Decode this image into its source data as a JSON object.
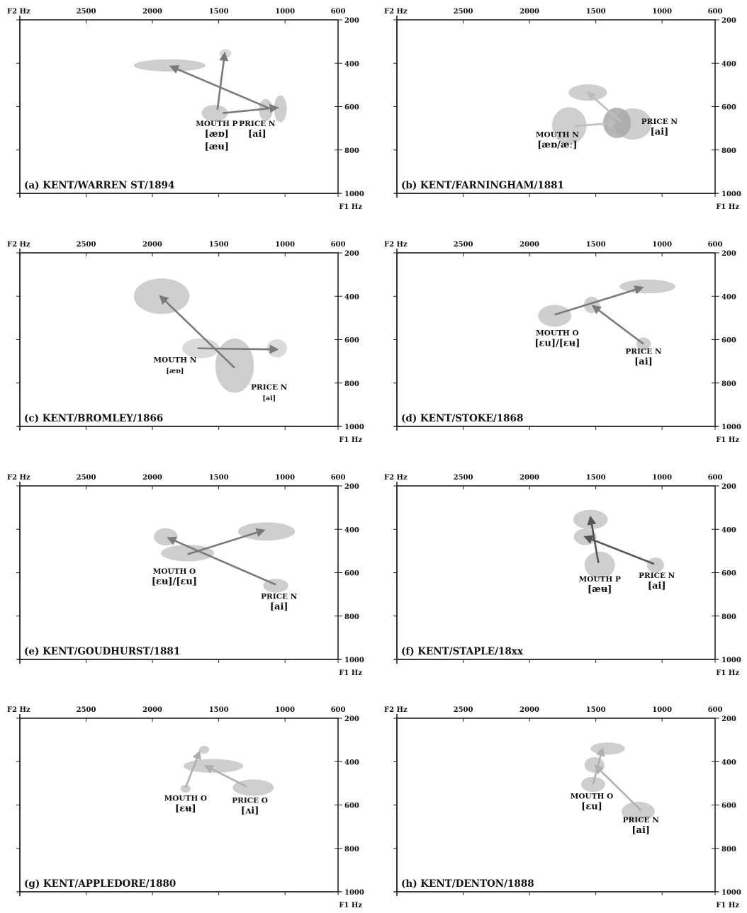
{
  "chart_data": [
    {
      "type": "scatter",
      "title": "(a) KENT/WARREN ST/1894",
      "xlabel": "F2 Hz",
      "ylabel": "F1 Hz",
      "xticks": [
        "2500",
        "2000",
        "1500",
        "1000",
        "600"
      ],
      "yticks": [
        "200",
        "400",
        "600",
        "800",
        "1000"
      ],
      "xlim": [
        3000,
        600
      ],
      "ylim": [
        200,
        1000
      ],
      "x_reversed": true,
      "y_reversed": true,
      "ellipses": [
        {
          "f2": 1450,
          "f1": 355,
          "rf2": 45,
          "rf1": 20,
          "shade": "#d4d4d4"
        },
        {
          "f2": 1870,
          "f1": 410,
          "rf2": 270,
          "rf1": 28,
          "shade": "#c6c6c6"
        },
        {
          "f2": 1530,
          "f1": 630,
          "rf2": 100,
          "rf1": 38,
          "shade": "#c6c6c6"
        },
        {
          "f2": 1145,
          "f1": 615,
          "rf2": 52,
          "rf1": 50,
          "shade": "#c6c6c6"
        },
        {
          "f2": 1035,
          "f1": 610,
          "rf2": 48,
          "rf1": 62,
          "shade": "#c6c6c6"
        }
      ],
      "arrows": [
        {
          "from": [
            1510,
            615
          ],
          "to": [
            1455,
            355
          ],
          "color": "#7a7a7a"
        },
        {
          "from": [
            1470,
            630
          ],
          "to": [
            1060,
            605
          ],
          "color": "#7a7a7a"
        },
        {
          "from": [
            1110,
            610
          ],
          "to": [
            1860,
            415
          ],
          "color": "#7a7a7a"
        }
      ],
      "labels": [
        {
          "lines": [
            "MOUTH P",
            "[æɒ]",
            "[æʉ]"
          ],
          "f2": 1515,
          "f1": 690,
          "styles": [
            "ann-label",
            "ann-ipa",
            "ann-ipa"
          ]
        },
        {
          "lines": [
            "PRICE N",
            "[ai]"
          ],
          "f2": 1210,
          "f1": 690,
          "styles": [
            "ann-label",
            "ann-ipa"
          ]
        }
      ]
    },
    {
      "type": "scatter",
      "title": "(b) KENT/FARNINGHAM/1881",
      "xlabel": "F2 Hz",
      "ylabel": "F1 Hz",
      "xticks": [
        "2500",
        "2000",
        "1500",
        "1000",
        "600"
      ],
      "yticks": [
        "200",
        "400",
        "600",
        "800",
        "1000"
      ],
      "xlim": [
        3000,
        600
      ],
      "ylim": [
        200,
        1000
      ],
      "x_reversed": true,
      "y_reversed": true,
      "ellipses": [
        {
          "f2": 1560,
          "f1": 535,
          "rf2": 145,
          "rf1": 38,
          "shade": "#c6c6c6"
        },
        {
          "f2": 1700,
          "f1": 688,
          "rf2": 130,
          "rf1": 85,
          "shade": "#c6c6c6"
        },
        {
          "f2": 1220,
          "f1": 680,
          "rf2": 140,
          "rf1": 72,
          "shade": "#c6c6c6"
        },
        {
          "f2": 1340,
          "f1": 675,
          "rf2": 105,
          "rf1": 70,
          "shade": "#a8a8a8"
        }
      ],
      "arrows": [
        {
          "from": [
            1660,
            690
          ],
          "to": [
            1350,
            675
          ],
          "color": "#bdbdbd"
        },
        {
          "from": [
            1310,
            670
          ],
          "to": [
            1560,
            535
          ],
          "color": "#bdbdbd"
        }
      ],
      "labels": [
        {
          "lines": [
            "MOUTH N",
            "[æɒ/æː]"
          ],
          "f2": 1790,
          "f1": 740,
          "styles": [
            "ann-label",
            "ann-ipa"
          ]
        },
        {
          "lines": [
            "PRICE N",
            "[ai]"
          ],
          "f2": 1020,
          "f1": 680,
          "styles": [
            "ann-label",
            "ann-ipa"
          ]
        }
      ]
    },
    {
      "type": "scatter",
      "title": "(c) KENT/BROMLEY/1866",
      "xlabel": "F2 Hz",
      "ylabel": "F1 Hz",
      "xticks": [
        "2500",
        "2000",
        "1500",
        "1000",
        "600"
      ],
      "yticks": [
        "200",
        "400",
        "600",
        "800",
        "1000"
      ],
      "xlim": [
        3000,
        600
      ],
      "ylim": [
        200,
        1000
      ],
      "x_reversed": true,
      "y_reversed": true,
      "ellipses": [
        {
          "f2": 1930,
          "f1": 400,
          "rf2": 210,
          "rf1": 82,
          "shade": "#c6c6c6"
        },
        {
          "f2": 1635,
          "f1": 640,
          "rf2": 140,
          "rf1": 46,
          "shade": "#d4d4d4"
        },
        {
          "f2": 1060,
          "f1": 640,
          "rf2": 75,
          "rf1": 42,
          "shade": "#d4d4d4"
        },
        {
          "f2": 1380,
          "f1": 720,
          "rf2": 145,
          "rf1": 125,
          "shade": "#c6c6c6"
        }
      ],
      "arrows": [
        {
          "from": [
            1380,
            730
          ],
          "to": [
            1940,
            400
          ],
          "color": "#7a7a7a"
        },
        {
          "from": [
            1660,
            640
          ],
          "to": [
            1060,
            645
          ],
          "color": "#7a7a7a"
        }
      ],
      "labels": [
        {
          "lines": [
            "MOUTH N",
            "[æɒ]"
          ],
          "f2": 1830,
          "f1": 705,
          "styles": [
            "ann-label",
            "ann-ipa-small"
          ]
        },
        {
          "lines": [
            "PRICE N",
            "[ai]"
          ],
          "f2": 1120,
          "f1": 830,
          "styles": [
            "ann-label",
            "ann-ipa-small"
          ]
        }
      ]
    },
    {
      "type": "scatter",
      "title": "(d) KENT/STOKE/1868",
      "xlabel": "F2 Hz",
      "ylabel": "F1 Hz",
      "xticks": [
        "2500",
        "2000",
        "1500",
        "1000",
        "600"
      ],
      "yticks": [
        "200",
        "400",
        "600",
        "800",
        "1000"
      ],
      "xlim": [
        3000,
        600
      ],
      "ylim": [
        200,
        1000
      ],
      "x_reversed": true,
      "y_reversed": true,
      "ellipses": [
        {
          "f2": 1110,
          "f1": 355,
          "rf2": 210,
          "rf1": 32,
          "shade": "#c6c6c6"
        },
        {
          "f2": 1530,
          "f1": 440,
          "rf2": 60,
          "rf1": 38,
          "shade": "#c6c6c6"
        },
        {
          "f2": 1810,
          "f1": 490,
          "rf2": 125,
          "rf1": 50,
          "shade": "#c6c6c6"
        },
        {
          "f2": 1140,
          "f1": 620,
          "rf2": 55,
          "rf1": 30,
          "shade": "#c6c6c6"
        }
      ],
      "arrows": [
        {
          "from": [
            1810,
            485
          ],
          "to": [
            1150,
            360
          ],
          "color": "#7a7a7a"
        },
        {
          "from": [
            1140,
            620
          ],
          "to": [
            1520,
            445
          ],
          "color": "#7a7a7a"
        }
      ],
      "labels": [
        {
          "lines": [
            "MOUTH O",
            "[ɛu]/[ɛʉ]"
          ],
          "f2": 1790,
          "f1": 580,
          "styles": [
            "ann-label",
            "ann-ipa"
          ]
        },
        {
          "lines": [
            "PRICE N",
            "[ai]"
          ],
          "f2": 1140,
          "f1": 665,
          "styles": [
            "ann-label",
            "ann-ipa"
          ]
        }
      ]
    },
    {
      "type": "scatter",
      "title": "(e) KENT/GOUDHURST/1881",
      "xlabel": "F2 Hz",
      "ylabel": "F1 Hz",
      "xticks": [
        "2500",
        "2000",
        "1500",
        "1000",
        "600"
      ],
      "yticks": [
        "200",
        "400",
        "600",
        "800",
        "1000"
      ],
      "xlim": [
        3000,
        600
      ],
      "ylim": [
        200,
        1000
      ],
      "x_reversed": true,
      "y_reversed": true,
      "ellipses": [
        {
          "f2": 1900,
          "f1": 435,
          "rf2": 90,
          "rf1": 40,
          "shade": "#c6c6c6"
        },
        {
          "f2": 1140,
          "f1": 410,
          "rf2": 215,
          "rf1": 42,
          "shade": "#c6c6c6"
        },
        {
          "f2": 1735,
          "f1": 510,
          "rf2": 200,
          "rf1": 38,
          "shade": "#c6c6c6"
        },
        {
          "f2": 1070,
          "f1": 660,
          "rf2": 95,
          "rf1": 32,
          "shade": "#c6c6c6"
        }
      ],
      "arrows": [
        {
          "from": [
            1735,
            515
          ],
          "to": [
            1160,
            405
          ],
          "color": "#7a7a7a"
        },
        {
          "from": [
            1070,
            655
          ],
          "to": [
            1880,
            440
          ],
          "color": "#7a7a7a"
        }
      ],
      "labels": [
        {
          "lines": [
            "MOUTH O",
            "[ɛʉ]/[ɛu]"
          ],
          "f2": 1835,
          "f1": 605,
          "styles": [
            "ann-label",
            "ann-ipa"
          ]
        },
        {
          "lines": [
            "PRICE N",
            "[ai]"
          ],
          "f2": 1045,
          "f1": 720,
          "styles": [
            "ann-label",
            "ann-ipa"
          ]
        }
      ]
    },
    {
      "type": "scatter",
      "title": "(f)  KENT/STAPLE/18xx",
      "xlabel": "F2 Hz",
      "ylabel": "F1 Hz",
      "xticks": [
        "2500",
        "2000",
        "1500",
        "1000",
        "600"
      ],
      "yticks": [
        "200",
        "400",
        "600",
        "800",
        "1000"
      ],
      "xlim": [
        3000,
        600
      ],
      "ylim": [
        200,
        1000
      ],
      "x_reversed": true,
      "y_reversed": true,
      "ellipses": [
        {
          "f2": 1540,
          "f1": 355,
          "rf2": 130,
          "rf1": 45,
          "shade": "#c6c6c6"
        },
        {
          "f2": 1580,
          "f1": 435,
          "rf2": 85,
          "rf1": 38,
          "shade": "#c6c6c6"
        },
        {
          "f2": 1470,
          "f1": 565,
          "rf2": 115,
          "rf1": 62,
          "shade": "#c6c6c6"
        },
        {
          "f2": 1050,
          "f1": 565,
          "rf2": 65,
          "rf1": 35,
          "shade": "#c6c6c6"
        }
      ],
      "arrows": [
        {
          "from": [
            1480,
            555
          ],
          "to": [
            1540,
            345
          ],
          "color": "#555555"
        },
        {
          "from": [
            1060,
            560
          ],
          "to": [
            1580,
            435
          ],
          "color": "#555555"
        }
      ],
      "labels": [
        {
          "lines": [
            "MOUTH P",
            "[æʉ]"
          ],
          "f2": 1470,
          "f1": 640,
          "styles": [
            "ann-label",
            "ann-ipa"
          ]
        },
        {
          "lines": [
            "PRICE N",
            "[ai]"
          ],
          "f2": 1040,
          "f1": 625,
          "styles": [
            "ann-label",
            "ann-ipa"
          ]
        }
      ]
    },
    {
      "type": "scatter",
      "title": "(g) KENT/APPLEDORE/1880",
      "xlabel": "F2 Hz",
      "ylabel": "F1 Hz",
      "xticks": [
        "2500",
        "2000",
        "1500",
        "1000",
        "600"
      ],
      "yticks": [
        "200",
        "400",
        "600",
        "800",
        "1000"
      ],
      "xlim": [
        3000,
        600
      ],
      "ylim": [
        200,
        1000
      ],
      "x_reversed": true,
      "y_reversed": true,
      "ellipses": [
        {
          "f2": 1610,
          "f1": 345,
          "rf2": 38,
          "rf1": 18,
          "shade": "#c6c6c6"
        },
        {
          "f2": 1540,
          "f1": 420,
          "rf2": 225,
          "rf1": 32,
          "shade": "#c6c6c6"
        },
        {
          "f2": 1240,
          "f1": 520,
          "rf2": 155,
          "rf1": 38,
          "shade": "#c6c6c6"
        },
        {
          "f2": 1750,
          "f1": 525,
          "rf2": 38,
          "rf1": 18,
          "shade": "#c6c6c6"
        }
      ],
      "arrows": [
        {
          "from": [
            1750,
            520
          ],
          "to": [
            1645,
            355
          ],
          "color": "#b0b0b0"
        },
        {
          "from": [
            1290,
            515
          ],
          "to": [
            1600,
            420
          ],
          "color": "#b0b0b0"
        }
      ],
      "labels": [
        {
          "lines": [
            "MOUTH O",
            "[ɛʉ]"
          ],
          "f2": 1750,
          "f1": 580,
          "styles": [
            "ann-label",
            "ann-ipa"
          ]
        },
        {
          "lines": [
            "PRICE O",
            "[ʌi]"
          ],
          "f2": 1265,
          "f1": 590,
          "styles": [
            "ann-label",
            "ann-ipa"
          ]
        }
      ]
    },
    {
      "type": "scatter",
      "title": "(h) KENT/DENTON/1888",
      "xlabel": "F2 Hz",
      "ylabel": "F1 Hz",
      "xticks": [
        "2500",
        "2000",
        "1500",
        "1000",
        "600"
      ],
      "yticks": [
        "200",
        "400",
        "600",
        "800",
        "1000"
      ],
      "xlim": [
        3000,
        600
      ],
      "ylim": [
        200,
        1000
      ],
      "x_reversed": true,
      "y_reversed": true,
      "ellipses": [
        {
          "f2": 1410,
          "f1": 340,
          "rf2": 130,
          "rf1": 28,
          "shade": "#c6c6c6"
        },
        {
          "f2": 1510,
          "f1": 415,
          "rf2": 75,
          "rf1": 36,
          "shade": "#c6c6c6"
        },
        {
          "f2": 1520,
          "f1": 505,
          "rf2": 90,
          "rf1": 35,
          "shade": "#c6c6c6"
        },
        {
          "f2": 1180,
          "f1": 630,
          "rf2": 125,
          "rf1": 45,
          "shade": "#c6c6c6"
        }
      ],
      "arrows": [
        {
          "from": [
            1520,
            505
          ],
          "to": [
            1450,
            340
          ],
          "color": "#b0b0b0"
        },
        {
          "from": [
            1160,
            625
          ],
          "to": [
            1500,
            420
          ],
          "color": "#b0b0b0"
        }
      ],
      "labels": [
        {
          "lines": [
            "MOUTH O",
            "[ɛu]"
          ],
          "f2": 1530,
          "f1": 570,
          "styles": [
            "ann-label",
            "ann-ipa"
          ]
        },
        {
          "lines": [
            "PRICE N",
            "[ai]"
          ],
          "f2": 1160,
          "f1": 680,
          "styles": [
            "ann-label",
            "ann-ipa"
          ]
        }
      ]
    }
  ]
}
